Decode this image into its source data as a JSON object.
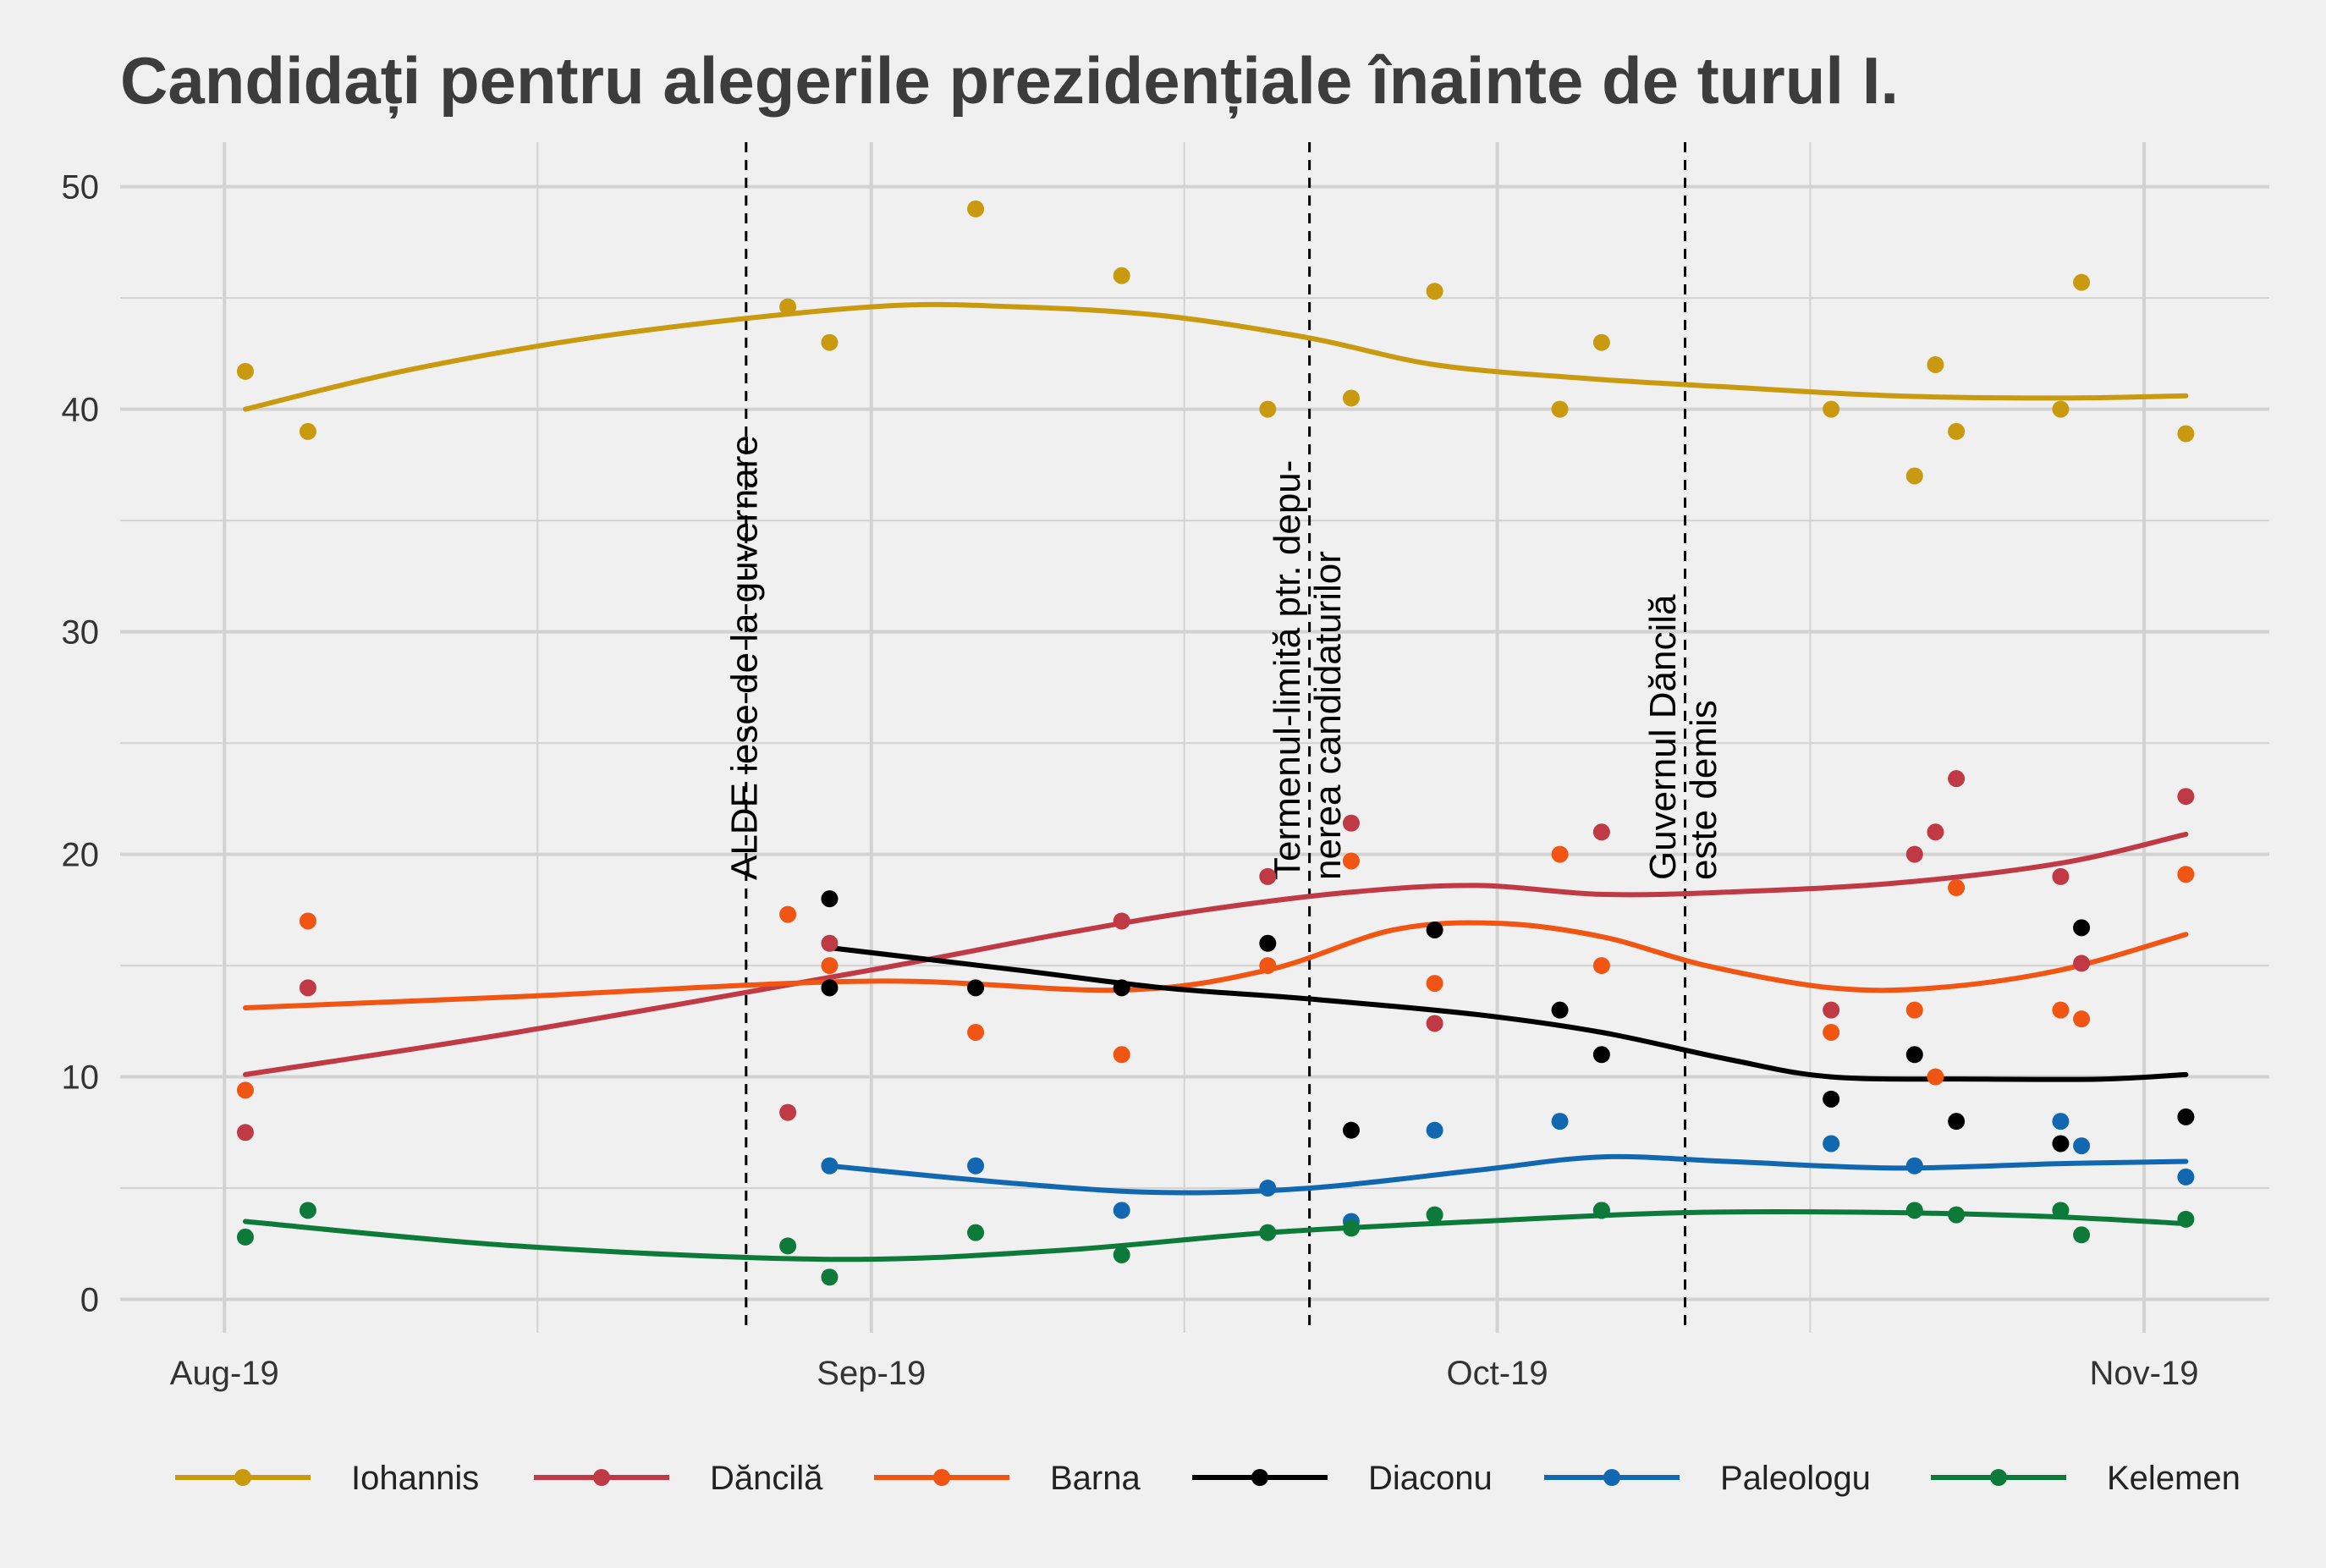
{
  "chart_data": {
    "type": "line",
    "title": "Candidați pentru alegerile prezidențiale înainte de turul I.",
    "xlabel": "",
    "ylabel": "",
    "x_ticks": [
      {
        "date": "2019-08-01",
        "label": "Aug-19"
      },
      {
        "date": "2019-09-01",
        "label": "Sep-19"
      },
      {
        "date": "2019-10-01",
        "label": "Oct-19"
      },
      {
        "date": "2019-11-01",
        "label": "Nov-19"
      }
    ],
    "xlim": [
      "2019-07-27",
      "2019-11-07"
    ],
    "ylim": [
      -1.5,
      52
    ],
    "y_ticks": [
      0,
      10,
      20,
      30,
      40,
      50
    ],
    "grid": true,
    "legend_position": "bottom",
    "annotations": [
      {
        "date": "2019-08-26",
        "lines": [
          "ALDE iese de la guvernare"
        ]
      },
      {
        "date": "2019-09-22",
        "lines": [
          "Termenul-limită ptr. depu-",
          "nerea candidaturilor"
        ]
      },
      {
        "date": "2019-10-10",
        "lines": [
          "Guvernul Dăncilă",
          "este demis"
        ]
      }
    ],
    "series": [
      {
        "name": "Iohannis",
        "color": "#c99a10",
        "points": [
          [
            "2019-08-02",
            41.7
          ],
          [
            "2019-08-05",
            39
          ],
          [
            "2019-08-28",
            44.6
          ],
          [
            "2019-08-30",
            43
          ],
          [
            "2019-09-06",
            49
          ],
          [
            "2019-09-13",
            46
          ],
          [
            "2019-09-20",
            40
          ],
          [
            "2019-09-24",
            40.5
          ],
          [
            "2019-09-28",
            45.3
          ],
          [
            "2019-10-04",
            40
          ],
          [
            "2019-10-06",
            43
          ],
          [
            "2019-10-17",
            40
          ],
          [
            "2019-10-21",
            37
          ],
          [
            "2019-10-22",
            42
          ],
          [
            "2019-10-23",
            39
          ],
          [
            "2019-10-28",
            40
          ],
          [
            "2019-10-29",
            45.7
          ],
          [
            "2019-11-03",
            38.9
          ]
        ],
        "trend": [
          [
            "2019-08-02",
            40
          ],
          [
            "2019-08-10",
            41.8
          ],
          [
            "2019-08-20",
            43.4
          ],
          [
            "2019-09-01",
            44.6
          ],
          [
            "2019-09-08",
            44.6
          ],
          [
            "2019-09-15",
            44.2
          ],
          [
            "2019-09-22",
            43.2
          ],
          [
            "2019-09-28",
            42
          ],
          [
            "2019-10-05",
            41.4
          ],
          [
            "2019-10-12",
            41
          ],
          [
            "2019-10-20",
            40.6
          ],
          [
            "2019-10-28",
            40.5
          ],
          [
            "2019-11-03",
            40.6
          ]
        ]
      },
      {
        "name": "Dăncilă",
        "color": "#bf3a44",
        "points": [
          [
            "2019-08-02",
            7.5
          ],
          [
            "2019-08-05",
            14
          ],
          [
            "2019-08-28",
            8.4
          ],
          [
            "2019-08-30",
            16
          ],
          [
            "2019-09-13",
            17
          ],
          [
            "2019-09-20",
            19
          ],
          [
            "2019-09-24",
            21.4
          ],
          [
            "2019-09-28",
            12.4
          ],
          [
            "2019-10-06",
            21
          ],
          [
            "2019-10-17",
            13
          ],
          [
            "2019-10-21",
            20
          ],
          [
            "2019-10-22",
            21
          ],
          [
            "2019-10-23",
            23.4
          ],
          [
            "2019-10-28",
            19
          ],
          [
            "2019-10-29",
            15.1
          ],
          [
            "2019-11-03",
            22.6
          ]
        ],
        "trend": [
          [
            "2019-08-02",
            10.1
          ],
          [
            "2019-08-15",
            12
          ],
          [
            "2019-09-01",
            14.8
          ],
          [
            "2019-09-10",
            16.4
          ],
          [
            "2019-09-17",
            17.5
          ],
          [
            "2019-09-24",
            18.3
          ],
          [
            "2019-09-30",
            18.6
          ],
          [
            "2019-10-06",
            18.2
          ],
          [
            "2019-10-12",
            18.3
          ],
          [
            "2019-10-20",
            18.7
          ],
          [
            "2019-10-28",
            19.6
          ],
          [
            "2019-11-03",
            20.9
          ]
        ]
      },
      {
        "name": "Barna",
        "color": "#f05514",
        "points": [
          [
            "2019-08-02",
            9.4
          ],
          [
            "2019-08-05",
            17
          ],
          [
            "2019-08-28",
            17.3
          ],
          [
            "2019-08-30",
            15
          ],
          [
            "2019-09-06",
            12
          ],
          [
            "2019-09-13",
            11
          ],
          [
            "2019-09-20",
            15
          ],
          [
            "2019-09-24",
            19.7
          ],
          [
            "2019-09-28",
            14.2
          ],
          [
            "2019-10-04",
            20
          ],
          [
            "2019-10-06",
            15
          ],
          [
            "2019-10-17",
            12
          ],
          [
            "2019-10-21",
            13
          ],
          [
            "2019-10-22",
            10
          ],
          [
            "2019-10-23",
            18.5
          ],
          [
            "2019-10-28",
            13
          ],
          [
            "2019-10-29",
            12.6
          ],
          [
            "2019-11-03",
            19.1
          ]
        ],
        "trend": [
          [
            "2019-08-02",
            13.1
          ],
          [
            "2019-08-15",
            13.6
          ],
          [
            "2019-09-01",
            14.3
          ],
          [
            "2019-09-13",
            13.9
          ],
          [
            "2019-09-20",
            14.8
          ],
          [
            "2019-09-26",
            16.6
          ],
          [
            "2019-10-01",
            16.9
          ],
          [
            "2019-10-06",
            16.3
          ],
          [
            "2019-10-11",
            15
          ],
          [
            "2019-10-17",
            14
          ],
          [
            "2019-10-22",
            14
          ],
          [
            "2019-10-28",
            14.8
          ],
          [
            "2019-11-03",
            16.4
          ]
        ]
      },
      {
        "name": "Diaconu",
        "color": "#000000",
        "points": [
          [
            "2019-08-30",
            18
          ],
          [
            "2019-08-30",
            14
          ],
          [
            "2019-09-06",
            14
          ],
          [
            "2019-09-13",
            14
          ],
          [
            "2019-09-20",
            16
          ],
          [
            "2019-09-24",
            7.6
          ],
          [
            "2019-09-28",
            16.6
          ],
          [
            "2019-10-04",
            13
          ],
          [
            "2019-10-06",
            11
          ],
          [
            "2019-10-17",
            9
          ],
          [
            "2019-10-21",
            11
          ],
          [
            "2019-10-23",
            8
          ],
          [
            "2019-10-28",
            7
          ],
          [
            "2019-10-29",
            16.7
          ],
          [
            "2019-11-03",
            8.2
          ]
        ],
        "trend": [
          [
            "2019-08-30",
            15.8
          ],
          [
            "2019-09-08",
            14.8
          ],
          [
            "2019-09-15",
            14
          ],
          [
            "2019-09-22",
            13.5
          ],
          [
            "2019-09-30",
            12.8
          ],
          [
            "2019-10-06",
            12
          ],
          [
            "2019-10-12",
            10.8
          ],
          [
            "2019-10-17",
            10
          ],
          [
            "2019-10-24",
            9.9
          ],
          [
            "2019-10-30",
            9.9
          ],
          [
            "2019-11-03",
            10.1
          ]
        ]
      },
      {
        "name": "Paleologu",
        "color": "#1168b0",
        "points": [
          [
            "2019-08-30",
            6
          ],
          [
            "2019-09-06",
            6
          ],
          [
            "2019-09-13",
            4
          ],
          [
            "2019-09-20",
            5
          ],
          [
            "2019-09-24",
            3.5
          ],
          [
            "2019-09-28",
            7.6
          ],
          [
            "2019-10-04",
            8
          ],
          [
            "2019-10-06",
            4
          ],
          [
            "2019-10-17",
            7
          ],
          [
            "2019-10-21",
            6
          ],
          [
            "2019-10-28",
            8
          ],
          [
            "2019-10-29",
            6.9
          ],
          [
            "2019-11-03",
            5.5
          ]
        ],
        "trend": [
          [
            "2019-08-30",
            6
          ],
          [
            "2019-09-08",
            5.2
          ],
          [
            "2019-09-15",
            4.8
          ],
          [
            "2019-09-22",
            5
          ],
          [
            "2019-09-30",
            5.8
          ],
          [
            "2019-10-06",
            6.4
          ],
          [
            "2019-10-12",
            6.2
          ],
          [
            "2019-10-20",
            5.9
          ],
          [
            "2019-10-28",
            6.1
          ],
          [
            "2019-11-03",
            6.2
          ]
        ]
      },
      {
        "name": "Kelemen",
        "color": "#0e7a3a",
        "points": [
          [
            "2019-08-02",
            2.8
          ],
          [
            "2019-08-05",
            4
          ],
          [
            "2019-08-28",
            2.4
          ],
          [
            "2019-08-30",
            1
          ],
          [
            "2019-09-06",
            3
          ],
          [
            "2019-09-13",
            2
          ],
          [
            "2019-09-20",
            3
          ],
          [
            "2019-09-24",
            3.2
          ],
          [
            "2019-09-28",
            3.8
          ],
          [
            "2019-10-06",
            4
          ],
          [
            "2019-10-21",
            4
          ],
          [
            "2019-10-23",
            3.8
          ],
          [
            "2019-10-28",
            4
          ],
          [
            "2019-10-29",
            2.9
          ],
          [
            "2019-11-03",
            3.6
          ]
        ],
        "trend": [
          [
            "2019-08-02",
            3.5
          ],
          [
            "2019-08-15",
            2.4
          ],
          [
            "2019-08-30",
            1.8
          ],
          [
            "2019-09-10",
            2.2
          ],
          [
            "2019-09-20",
            3
          ],
          [
            "2019-09-30",
            3.5
          ],
          [
            "2019-10-10",
            3.9
          ],
          [
            "2019-10-20",
            3.9
          ],
          [
            "2019-10-28",
            3.7
          ],
          [
            "2019-11-03",
            3.4
          ]
        ]
      }
    ]
  },
  "style": {
    "background": "#f0f0f0",
    "grid_color": "#d2d2d2"
  }
}
